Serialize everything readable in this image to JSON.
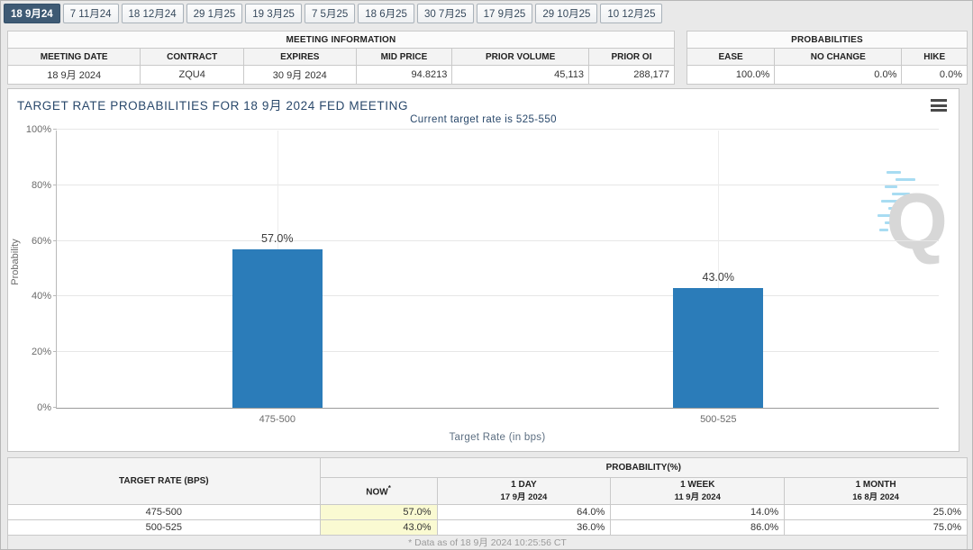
{
  "tabs": [
    {
      "label": "18 9月24",
      "active": true
    },
    {
      "label": "7 11月24",
      "active": false
    },
    {
      "label": "18 12月24",
      "active": false
    },
    {
      "label": "29 1月25",
      "active": false
    },
    {
      "label": "19 3月25",
      "active": false
    },
    {
      "label": "7 5月25",
      "active": false
    },
    {
      "label": "18 6月25",
      "active": false
    },
    {
      "label": "30 7月25",
      "active": false
    },
    {
      "label": "17 9月25",
      "active": false
    },
    {
      "label": "29 10月25",
      "active": false
    },
    {
      "label": "10 12月25",
      "active": false
    }
  ],
  "meeting_info": {
    "title": "MEETING INFORMATION",
    "columns": [
      "MEETING DATE",
      "CONTRACT",
      "EXPIRES",
      "MID PRICE",
      "PRIOR VOLUME",
      "PRIOR OI"
    ],
    "values": [
      "18 9月 2024",
      "ZQU4",
      "30 9月 2024",
      "94.8213",
      "45,113",
      "288,177"
    ]
  },
  "probabilities": {
    "title": "PROBABILITIES",
    "columns": [
      "EASE",
      "NO CHANGE",
      "HIKE"
    ],
    "values": [
      "100.0%",
      "0.0%",
      "0.0%"
    ]
  },
  "chart": {
    "title": "TARGET RATE PROBABILITIES FOR 18 9月 2024 FED MEETING",
    "subtitle": "Current target rate is 525-550",
    "menu_icon": "hamburger-icon",
    "watermark_letter": "Q"
  },
  "chart_data": {
    "type": "bar",
    "categories": [
      "475-500",
      "500-525"
    ],
    "values": [
      57.0,
      43.0
    ],
    "value_labels": [
      "57.0%",
      "43.0%"
    ],
    "title": "TARGET RATE PROBABILITIES FOR 18 9月 2024 FED MEETING",
    "subtitle": "Current target rate is 525-550",
    "xlabel": "Target Rate (in bps)",
    "ylabel": "Probability",
    "ylim": [
      0,
      100
    ],
    "yticks": [
      "0%",
      "20%",
      "40%",
      "60%",
      "80%",
      "100%"
    ],
    "grid": true,
    "legend": "none",
    "bar_color": "#2b7cb9",
    "category_positions_pct": [
      25,
      75
    ]
  },
  "bottom_table": {
    "col1_header": "TARGET RATE (BPS)",
    "group_header": "PROBABILITY(%)",
    "sub_headers": [
      {
        "line1": "NOW",
        "sup": "*",
        "line2": ""
      },
      {
        "line1": "1 DAY",
        "sup": "",
        "line2": "17 9月 2024"
      },
      {
        "line1": "1 WEEK",
        "sup": "",
        "line2": "11 9月 2024"
      },
      {
        "line1": "1 MONTH",
        "sup": "",
        "line2": "16 8月 2024"
      }
    ],
    "rows": [
      {
        "rate": "475-500",
        "now": "57.0%",
        "day": "64.0%",
        "week": "14.0%",
        "month": "25.0%"
      },
      {
        "rate": "500-525",
        "now": "43.0%",
        "day": "36.0%",
        "week": "86.0%",
        "month": "75.0%"
      }
    ],
    "footnote": "* Data as of 18 9月 2024 10:25:56 CT"
  },
  "colors": {
    "bar": "#2b7cb9",
    "active_tab_bg": "#3e5a74",
    "now_highlight": "#fafad2",
    "chart_title_text": "#29486b",
    "watermark_dash": "#a8dcf2"
  }
}
